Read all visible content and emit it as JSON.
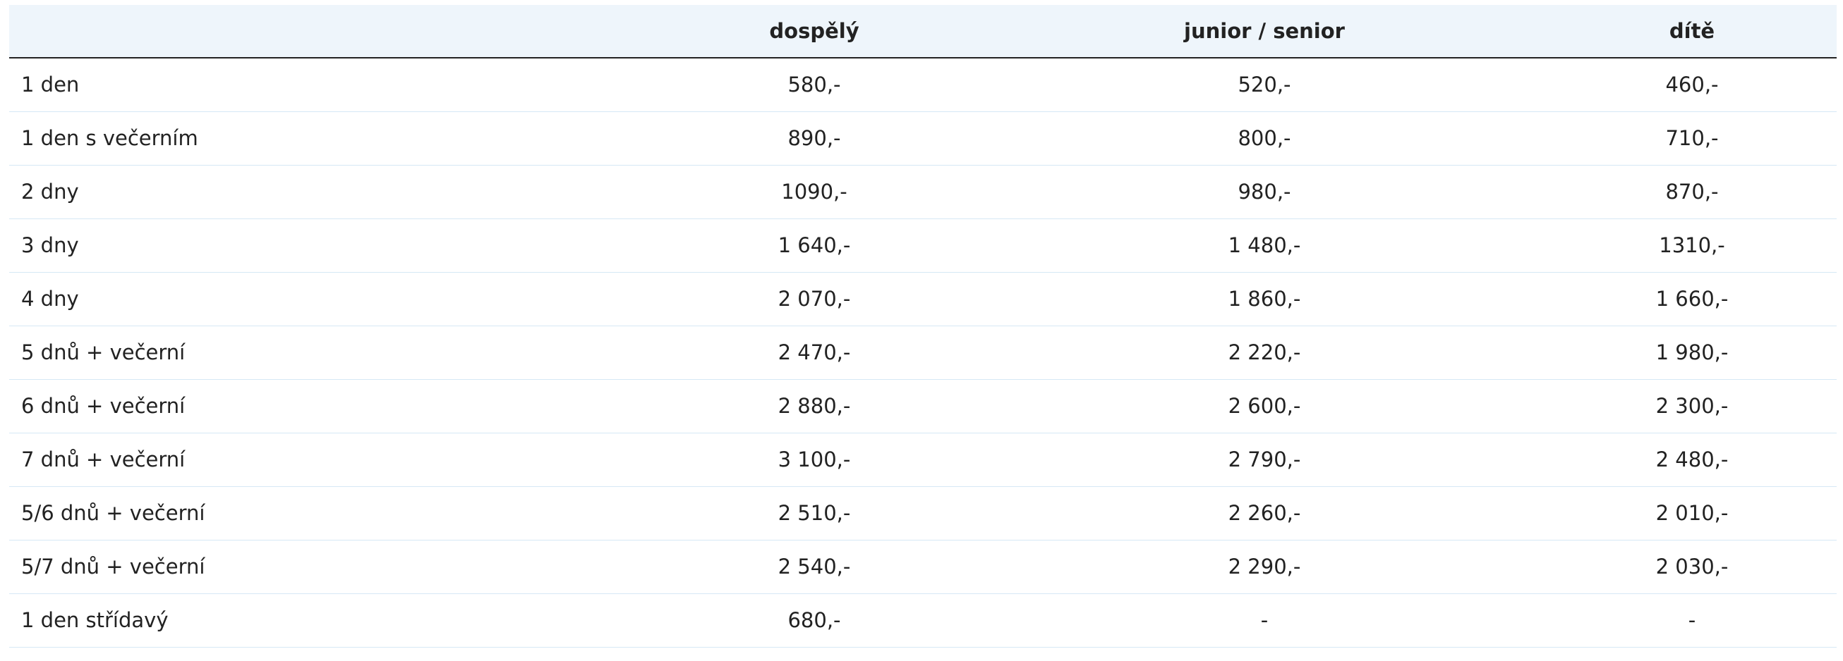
{
  "table": {
    "header": [
      "dospělý",
      "junior / senior",
      "dítě"
    ],
    "rows": [
      [
        "1 den",
        "580,-",
        "520,-",
        "460,-"
      ],
      [
        "1 den s večerním",
        "890,-",
        "800,-",
        "710,-"
      ],
      [
        "2 dny",
        "1090,-",
        "980,-",
        "870,-"
      ],
      [
        "3 dny",
        "1 640,-",
        "1 480,-",
        "1310,-"
      ],
      [
        "4 dny",
        "2 070,-",
        "1 860,-",
        "1 660,-"
      ],
      [
        "5 dnů + večerní",
        "2 470,-",
        "2 220,-",
        "1 980,-"
      ],
      [
        "6 dnů + večerní",
        "2 880,-",
        "2 600,-",
        "2 300,-"
      ],
      [
        "7 dnů + večerní",
        "3 100,-",
        "2 790,-",
        "2 480,-"
      ],
      [
        "5/6 dnů + večerní",
        "2 510,-",
        "2 260,-",
        "2 010,-"
      ],
      [
        "5/7 dnů + večerní",
        "2 540,-",
        "2 290,-",
        "2 030,-"
      ],
      [
        "1 den střídavý",
        "680,-",
        "-",
        "-"
      ]
    ]
  }
}
